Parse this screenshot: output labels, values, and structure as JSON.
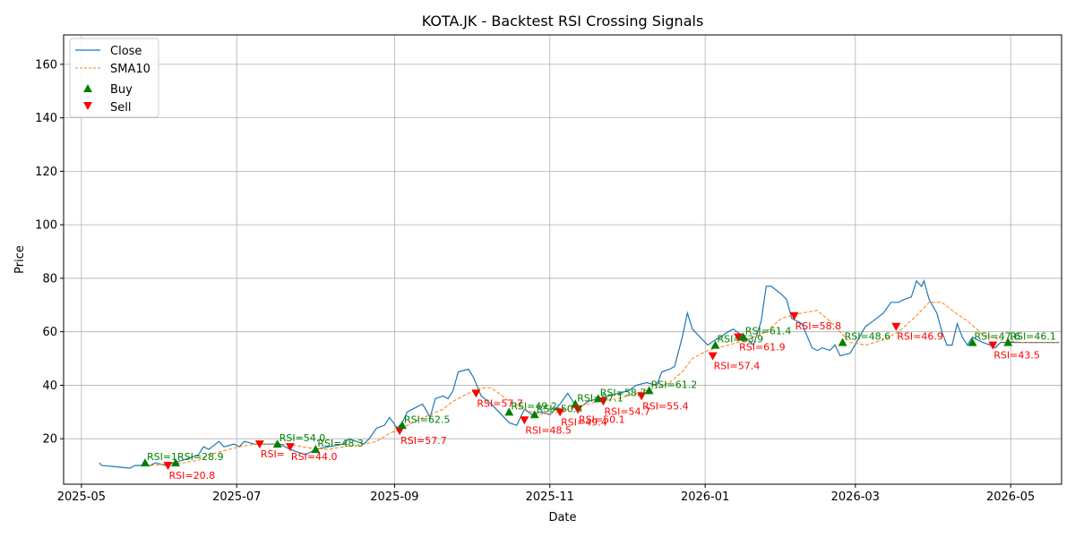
{
  "chart_data": {
    "type": "line",
    "title": "KOTA.JK - Backtest RSI Crossing Signals",
    "xlabel": "Date",
    "ylabel": "Price",
    "xlim": [
      "2025-04-24",
      "2026-05-21"
    ],
    "ylim": [
      3,
      171
    ],
    "grid": true,
    "legend_placement": "upper-left",
    "x_ticks": [
      "2025-05",
      "2025-07",
      "2025-09",
      "2025-11",
      "2026-01",
      "2026-03",
      "2026-05"
    ],
    "y_ticks": [
      20,
      40,
      60,
      80,
      100,
      120,
      140,
      160
    ],
    "colors": {
      "close": "#1f77b4",
      "sma": "#ff7f0e",
      "buy": "#008000",
      "sell": "#ff0000"
    },
    "legend": [
      "Close",
      "SMA10",
      "Buy",
      "Sell"
    ],
    "series": [
      {
        "name": "Close",
        "style": "solid",
        "points": [
          [
            "2025-05-08",
            11
          ],
          [
            "2025-05-09",
            10
          ],
          [
            "2025-05-15",
            9.5
          ],
          [
            "2025-05-20",
            9
          ],
          [
            "2025-05-22",
            10
          ],
          [
            "2025-05-28",
            10
          ],
          [
            "2025-05-30",
            11
          ],
          [
            "2025-06-03",
            10
          ],
          [
            "2025-06-06",
            11
          ],
          [
            "2025-06-10",
            12
          ],
          [
            "2025-06-13",
            13
          ],
          [
            "2025-06-16",
            14
          ],
          [
            "2025-06-18",
            17
          ],
          [
            "2025-06-20",
            16
          ],
          [
            "2025-06-24",
            19
          ],
          [
            "2025-06-26",
            17
          ],
          [
            "2025-06-30",
            18
          ],
          [
            "2025-07-02",
            17
          ],
          [
            "2025-07-04",
            19
          ],
          [
            "2025-07-08",
            18
          ],
          [
            "2025-07-14",
            18
          ],
          [
            "2025-07-18",
            18
          ],
          [
            "2025-07-22",
            16
          ],
          [
            "2025-07-28",
            14
          ],
          [
            "2025-08-01",
            16
          ],
          [
            "2025-08-06",
            17
          ],
          [
            "2025-08-12",
            18
          ],
          [
            "2025-08-14",
            20
          ],
          [
            "2025-08-20",
            18
          ],
          [
            "2025-08-22",
            20
          ],
          [
            "2025-08-25",
            24
          ],
          [
            "2025-08-28",
            25
          ],
          [
            "2025-08-30",
            28
          ],
          [
            "2025-09-02",
            24
          ],
          [
            "2025-09-04",
            26
          ],
          [
            "2025-09-06",
            30
          ],
          [
            "2025-09-10",
            32
          ],
          [
            "2025-09-12",
            33
          ],
          [
            "2025-09-15",
            28
          ],
          [
            "2025-09-17",
            35
          ],
          [
            "2025-09-20",
            36
          ],
          [
            "2025-09-22",
            35
          ],
          [
            "2025-09-24",
            38
          ],
          [
            "2025-09-26",
            45
          ],
          [
            "2025-09-30",
            46
          ],
          [
            "2025-10-02",
            43
          ],
          [
            "2025-10-05",
            36
          ],
          [
            "2025-10-09",
            33
          ],
          [
            "2025-10-12",
            30
          ],
          [
            "2025-10-16",
            26
          ],
          [
            "2025-10-19",
            25
          ],
          [
            "2025-10-22",
            31
          ],
          [
            "2025-10-25",
            29
          ],
          [
            "2025-10-28",
            30
          ],
          [
            "2025-11-01",
            29
          ],
          [
            "2025-11-05",
            33
          ],
          [
            "2025-11-08",
            37
          ],
          [
            "2025-11-12",
            31
          ],
          [
            "2025-11-16",
            34
          ],
          [
            "2025-11-20",
            35
          ],
          [
            "2025-11-24",
            36
          ],
          [
            "2025-11-28",
            37
          ],
          [
            "2025-12-02",
            38
          ],
          [
            "2025-12-05",
            40
          ],
          [
            "2025-12-09",
            41
          ],
          [
            "2025-12-13",
            40
          ],
          [
            "2025-12-15",
            45
          ],
          [
            "2025-12-18",
            46
          ],
          [
            "2025-12-20",
            47
          ],
          [
            "2025-12-23",
            58
          ],
          [
            "2025-12-25",
            67
          ],
          [
            "2025-12-27",
            61
          ],
          [
            "2025-12-31",
            57
          ],
          [
            "2026-01-02",
            55
          ],
          [
            "2026-01-05",
            57
          ],
          [
            "2026-01-07",
            58
          ],
          [
            "2026-01-10",
            60
          ],
          [
            "2026-01-12",
            61
          ],
          [
            "2026-01-15",
            59
          ],
          [
            "2026-01-18",
            57
          ],
          [
            "2026-01-20",
            55
          ],
          [
            "2026-01-23",
            64
          ],
          [
            "2026-01-25",
            77
          ],
          [
            "2026-01-27",
            77
          ],
          [
            "2026-01-31",
            74
          ],
          [
            "2026-02-02",
            72
          ],
          [
            "2026-02-04",
            65
          ],
          [
            "2026-02-08",
            63
          ],
          [
            "2026-02-12",
            54
          ],
          [
            "2026-02-14",
            53
          ],
          [
            "2026-02-16",
            54
          ],
          [
            "2026-02-19",
            53
          ],
          [
            "2026-02-21",
            55
          ],
          [
            "2026-02-23",
            51
          ],
          [
            "2026-02-27",
            52
          ],
          [
            "2026-03-02",
            57
          ],
          [
            "2026-03-05",
            62
          ],
          [
            "2026-03-08",
            64
          ],
          [
            "2026-03-12",
            67
          ],
          [
            "2026-03-15",
            71
          ],
          [
            "2026-03-18",
            71
          ],
          [
            "2026-03-20",
            72
          ],
          [
            "2026-03-23",
            73
          ],
          [
            "2026-03-25",
            79
          ],
          [
            "2026-03-27",
            77
          ],
          [
            "2026-03-28",
            79
          ],
          [
            "2026-03-30",
            72
          ],
          [
            "2026-04-02",
            67
          ],
          [
            "2026-04-04",
            60
          ],
          [
            "2026-04-06",
            55
          ],
          [
            "2026-04-08",
            55
          ],
          [
            "2026-04-10",
            63
          ],
          [
            "2026-04-12",
            58
          ],
          [
            "2026-04-14",
            55
          ],
          [
            "2026-04-16",
            58
          ],
          [
            "2026-04-20",
            56
          ],
          [
            "2026-04-23",
            55
          ],
          [
            "2026-04-25",
            54
          ],
          [
            "2026-04-27",
            56
          ],
          [
            "2026-05-01",
            56
          ],
          [
            "2026-05-05",
            56
          ],
          [
            "2026-05-09",
            56
          ],
          [
            "2026-05-13",
            56
          ],
          [
            "2026-05-16",
            56
          ],
          [
            "2026-05-20",
            56
          ]
        ]
      },
      {
        "name": "SMA10",
        "style": "dashed",
        "points": [
          [
            "2025-05-28",
            10
          ],
          [
            "2025-06-03",
            10.5
          ],
          [
            "2025-06-10",
            11
          ],
          [
            "2025-06-16",
            12
          ],
          [
            "2025-06-20",
            14
          ],
          [
            "2025-06-26",
            15.5
          ],
          [
            "2025-07-02",
            17
          ],
          [
            "2025-07-08",
            18
          ],
          [
            "2025-07-18",
            18
          ],
          [
            "2025-07-24",
            17.5
          ],
          [
            "2025-07-30",
            16.5
          ],
          [
            "2025-08-06",
            16
          ],
          [
            "2025-08-12",
            17
          ],
          [
            "2025-08-20",
            18
          ],
          [
            "2025-08-25",
            19
          ],
          [
            "2025-08-30",
            22
          ],
          [
            "2025-09-04",
            24
          ],
          [
            "2025-09-10",
            27
          ],
          [
            "2025-09-15",
            29
          ],
          [
            "2025-09-20",
            31
          ],
          [
            "2025-09-24",
            34
          ],
          [
            "2025-09-30",
            37
          ],
          [
            "2025-10-05",
            39
          ],
          [
            "2025-10-09",
            39
          ],
          [
            "2025-10-12",
            37
          ],
          [
            "2025-10-16",
            34
          ],
          [
            "2025-10-22",
            31
          ],
          [
            "2025-10-28",
            29
          ],
          [
            "2025-11-05",
            30
          ],
          [
            "2025-11-12",
            32
          ],
          [
            "2025-11-20",
            34
          ],
          [
            "2025-11-28",
            35
          ],
          [
            "2025-12-05",
            37
          ],
          [
            "2025-12-13",
            39
          ],
          [
            "2025-12-18",
            41
          ],
          [
            "2025-12-23",
            45
          ],
          [
            "2025-12-27",
            50
          ],
          [
            "2026-01-02",
            53
          ],
          [
            "2026-01-10",
            55
          ],
          [
            "2026-01-18",
            57
          ],
          [
            "2026-01-25",
            60
          ],
          [
            "2026-01-31",
            65
          ],
          [
            "2026-02-08",
            67
          ],
          [
            "2026-02-14",
            68
          ],
          [
            "2026-02-19",
            64
          ],
          [
            "2026-02-23",
            60
          ],
          [
            "2026-02-27",
            56
          ],
          [
            "2026-03-05",
            55
          ],
          [
            "2026-03-12",
            57
          ],
          [
            "2026-03-18",
            60
          ],
          [
            "2026-03-25",
            66
          ],
          [
            "2026-03-30",
            71
          ],
          [
            "2026-04-04",
            71
          ],
          [
            "2026-04-08",
            68
          ],
          [
            "2026-04-14",
            64
          ],
          [
            "2026-04-20",
            59
          ],
          [
            "2026-04-27",
            57
          ],
          [
            "2026-05-05",
            56
          ],
          [
            "2026-05-13",
            56
          ],
          [
            "2026-05-20",
            56
          ]
        ]
      }
    ],
    "signals": [
      {
        "type": "Buy",
        "date": "2025-05-26",
        "price": 11,
        "label": "RSI=1"
      },
      {
        "type": "Sell",
        "date": "2025-06-04",
        "price": 10,
        "label": "RSI=20.8"
      },
      {
        "type": "Buy",
        "date": "2025-06-07",
        "price": 11,
        "label": "RSI=28.9"
      },
      {
        "type": "Sell",
        "date": "2025-07-10",
        "price": 18,
        "label": "RSI="
      },
      {
        "type": "Buy",
        "date": "2025-07-17",
        "price": 18,
        "label": "RSI=54.0"
      },
      {
        "type": "Sell",
        "date": "2025-07-22",
        "price": 17,
        "label": "RSI=44.0"
      },
      {
        "type": "Buy",
        "date": "2025-08-01",
        "price": 16,
        "label": "RSI=48.3"
      },
      {
        "type": "Sell",
        "date": "2025-09-03",
        "price": 23,
        "label": "RSI=57.7"
      },
      {
        "type": "Buy",
        "date": "2025-09-04",
        "price": 25,
        "label": "RSI=62.5"
      },
      {
        "type": "Sell",
        "date": "2025-10-03",
        "price": 37,
        "label": "RSI=57.7"
      },
      {
        "type": "Buy",
        "date": "2025-10-16",
        "price": 30,
        "label": "RSI=49.2"
      },
      {
        "type": "Sell",
        "date": "2025-10-22",
        "price": 27,
        "label": "RSI=48.5"
      },
      {
        "type": "Buy",
        "date": "2025-10-26",
        "price": 29,
        "label": "RSI=50.4"
      },
      {
        "type": "Sell",
        "date": "2025-11-05",
        "price": 30,
        "label": "RSI=49.4"
      },
      {
        "type": "Buy",
        "date": "2025-11-11",
        "price": 33,
        "label": "RSI=57.1"
      },
      {
        "type": "Sell",
        "date": "2025-11-12",
        "price": 31,
        "label": "RSI=50.1"
      },
      {
        "type": "Buy",
        "date": "2025-11-20",
        "price": 35,
        "label": "RSI=58.7"
      },
      {
        "type": "Sell",
        "date": "2025-11-22",
        "price": 34,
        "label": "RSI=54.7"
      },
      {
        "type": "Sell",
        "date": "2025-12-07",
        "price": 36,
        "label": "RSI=55.4"
      },
      {
        "type": "Buy",
        "date": "2025-12-10",
        "price": 38,
        "label": "RSI=61.2"
      },
      {
        "type": "Sell",
        "date": "2026-01-04",
        "price": 51,
        "label": "RSI=57.4"
      },
      {
        "type": "Buy",
        "date": "2026-01-05",
        "price": 55,
        "label": "RSI=63.9"
      },
      {
        "type": "Sell",
        "date": "2026-01-14",
        "price": 58,
        "label": "RSI=61.9"
      },
      {
        "type": "Buy",
        "date": "2026-01-16",
        "price": 58,
        "label": "RSI=61.4"
      },
      {
        "type": "Sell",
        "date": "2026-02-05",
        "price": 66,
        "label": "RSI=58.8"
      },
      {
        "type": "Buy",
        "date": "2026-02-24",
        "price": 56,
        "label": "RSI=48.6"
      },
      {
        "type": "Sell",
        "date": "2026-03-17",
        "price": 62,
        "label": "RSI=46.9"
      },
      {
        "type": "Buy",
        "date": "2026-04-16",
        "price": 56,
        "label": "RSI=47.6"
      },
      {
        "type": "Sell",
        "date": "2026-04-24",
        "price": 55,
        "label": "RSI=43.5"
      },
      {
        "type": "Buy",
        "date": "2026-04-30",
        "price": 56,
        "label": "RSI=46.1"
      }
    ]
  }
}
